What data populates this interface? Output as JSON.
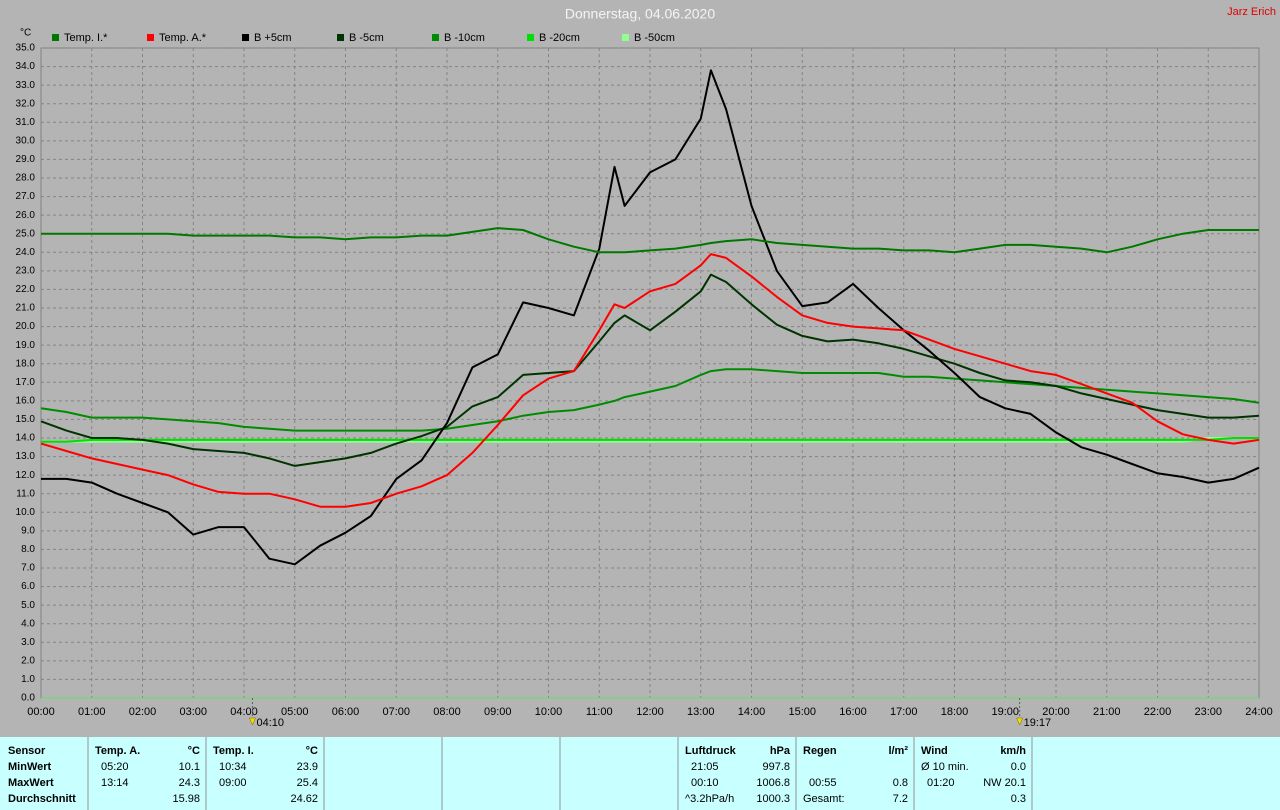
{
  "chart_data": {
    "type": "line",
    "title": "Donnerstag, 04.06.2020",
    "author": "Jarz Erich",
    "y_unit": "°C",
    "x": [
      0,
      0.5,
      1,
      1.5,
      2,
      2.5,
      3,
      3.5,
      4,
      4.5,
      5,
      5.5,
      6,
      6.5,
      7,
      7.5,
      8,
      8.5,
      9,
      9.5,
      10,
      10.5,
      11,
      11.3,
      11.5,
      12,
      12.5,
      13,
      13.2,
      13.5,
      14,
      14.5,
      15,
      15.5,
      16,
      16.5,
      17,
      17.5,
      18,
      18.5,
      19,
      19.5,
      20,
      20.5,
      21,
      21.5,
      22,
      22.5,
      23,
      23.5,
      24
    ],
    "series": [
      {
        "name": "Temp. I.*",
        "color": "#007800",
        "values": [
          25.0,
          25.0,
          25.0,
          25.0,
          25.0,
          25.0,
          24.9,
          24.9,
          24.9,
          24.9,
          24.8,
          24.8,
          24.7,
          24.8,
          24.8,
          24.9,
          24.9,
          25.1,
          25.3,
          25.2,
          24.7,
          24.3,
          24.0,
          24.0,
          24.0,
          24.1,
          24.2,
          24.4,
          24.5,
          24.6,
          24.7,
          24.5,
          24.4,
          24.3,
          24.2,
          24.2,
          24.1,
          24.1,
          24.0,
          24.2,
          24.4,
          24.4,
          24.3,
          24.2,
          24.0,
          24.3,
          24.7,
          25.0,
          25.2,
          25.2,
          25.2
        ]
      },
      {
        "name": "Temp. A.*",
        "color": "#ff0000",
        "values": [
          13.7,
          13.3,
          12.9,
          12.6,
          12.3,
          12.0,
          11.5,
          11.1,
          11.0,
          11.0,
          10.7,
          10.3,
          10.3,
          10.5,
          11.0,
          11.4,
          12.0,
          13.2,
          14.7,
          16.3,
          17.2,
          17.6,
          19.8,
          21.2,
          21.0,
          21.9,
          22.3,
          23.3,
          23.9,
          23.7,
          22.7,
          21.6,
          20.6,
          20.2,
          20.0,
          19.9,
          19.8,
          19.3,
          18.8,
          18.4,
          18.0,
          17.6,
          17.4,
          16.9,
          16.4,
          15.9,
          14.9,
          14.2,
          13.9,
          13.7,
          13.9
        ]
      },
      {
        "name": "B +5cm",
        "color": "#000000",
        "values": [
          11.8,
          11.8,
          11.6,
          11.0,
          10.5,
          10.0,
          8.8,
          9.2,
          9.2,
          7.5,
          7.2,
          8.2,
          8.9,
          9.8,
          11.8,
          12.8,
          14.8,
          17.8,
          18.5,
          21.3,
          21.0,
          20.6,
          24.2,
          28.6,
          26.5,
          28.3,
          29.0,
          31.2,
          33.8,
          31.7,
          26.5,
          23.0,
          21.1,
          21.3,
          22.3,
          21.0,
          19.8,
          18.7,
          17.5,
          16.2,
          15.6,
          15.3,
          14.3,
          13.5,
          13.1,
          12.6,
          12.1,
          11.9,
          11.6,
          11.8,
          12.4
        ]
      },
      {
        "name": "B -5cm",
        "color": "#003300",
        "values": [
          14.9,
          14.4,
          14.0,
          14.0,
          13.9,
          13.7,
          13.4,
          13.3,
          13.2,
          12.9,
          12.5,
          12.7,
          12.9,
          13.2,
          13.7,
          14.1,
          14.6,
          15.7,
          16.2,
          17.4,
          17.5,
          17.6,
          19.2,
          20.2,
          20.6,
          19.8,
          20.8,
          21.9,
          22.8,
          22.4,
          21.2,
          20.1,
          19.5,
          19.2,
          19.3,
          19.1,
          18.8,
          18.4,
          18.0,
          17.5,
          17.1,
          17.0,
          16.8,
          16.4,
          16.1,
          15.8,
          15.5,
          15.3,
          15.1,
          15.1,
          15.2
        ]
      },
      {
        "name": "B -10cm",
        "color": "#008c00",
        "values": [
          15.6,
          15.4,
          15.1,
          15.1,
          15.1,
          15.0,
          14.9,
          14.8,
          14.6,
          14.5,
          14.4,
          14.4,
          14.4,
          14.4,
          14.4,
          14.4,
          14.5,
          14.7,
          14.9,
          15.2,
          15.4,
          15.5,
          15.8,
          16.0,
          16.2,
          16.5,
          16.8,
          17.4,
          17.6,
          17.7,
          17.7,
          17.6,
          17.5,
          17.5,
          17.5,
          17.5,
          17.3,
          17.3,
          17.2,
          17.1,
          17.0,
          16.9,
          16.8,
          16.7,
          16.6,
          16.5,
          16.4,
          16.3,
          16.2,
          16.1,
          15.9
        ]
      },
      {
        "name": "B -20cm",
        "color": "#00e000",
        "values": [
          13.8,
          13.8,
          13.9,
          13.9,
          13.9,
          13.9,
          13.9,
          13.9,
          13.9,
          13.9,
          13.9,
          13.9,
          13.9,
          13.9,
          13.9,
          13.9,
          13.9,
          13.9,
          13.9,
          13.9,
          13.9,
          13.9,
          13.9,
          13.9,
          13.9,
          13.9,
          13.9,
          13.9,
          13.9,
          13.9,
          13.9,
          13.9,
          13.9,
          13.9,
          13.9,
          13.9,
          13.9,
          13.9,
          13.9,
          13.9,
          13.9,
          13.9,
          13.9,
          13.9,
          13.9,
          13.9,
          13.9,
          13.9,
          13.9,
          14.0,
          14.0
        ]
      },
      {
        "name": "B -50cm",
        "color": "#90ff90",
        "values": [
          13.8,
          13.8,
          13.8,
          13.8,
          13.8,
          13.8,
          13.8,
          13.8,
          13.8,
          13.8,
          13.8,
          13.8,
          13.8,
          13.8,
          13.8,
          13.8,
          13.8,
          13.8,
          13.8,
          13.8,
          13.8,
          13.8,
          13.8,
          13.8,
          13.8,
          13.8,
          13.8,
          13.8,
          13.8,
          13.8,
          13.8,
          13.8,
          13.8,
          13.8,
          13.8,
          13.8,
          13.8,
          13.8,
          13.8,
          13.8,
          13.8,
          13.8,
          13.8,
          13.8,
          13.8,
          13.8,
          13.8,
          13.8,
          14.0,
          14.0,
          14.0
        ]
      }
    ],
    "xlim": [
      0,
      24
    ],
    "xticks": [
      {
        "value": 0,
        "label": "00:00"
      },
      {
        "value": 1,
        "label": "01:00"
      },
      {
        "value": 2,
        "label": "02:00"
      },
      {
        "value": 3,
        "label": "03:00"
      },
      {
        "value": 4,
        "label": "04:00"
      },
      {
        "value": 5,
        "label": "05:00"
      },
      {
        "value": 6,
        "label": "06:00"
      },
      {
        "value": 7,
        "label": "07:00"
      },
      {
        "value": 8,
        "label": "08:00"
      },
      {
        "value": 9,
        "label": "09:00"
      },
      {
        "value": 10,
        "label": "10:00"
      },
      {
        "value": 11,
        "label": "11:00"
      },
      {
        "value": 12,
        "label": "12:00"
      },
      {
        "value": 13,
        "label": "13:00"
      },
      {
        "value": 14,
        "label": "14:00"
      },
      {
        "value": 15,
        "label": "15:00"
      },
      {
        "value": 16,
        "label": "16:00"
      },
      {
        "value": 17,
        "label": "17:00"
      },
      {
        "value": 18,
        "label": "18:00"
      },
      {
        "value": 19,
        "label": "19:00"
      },
      {
        "value": 20,
        "label": "20:00"
      },
      {
        "value": 21,
        "label": "21:00"
      },
      {
        "value": 22,
        "label": "22:00"
      },
      {
        "value": 23,
        "label": "23:00"
      },
      {
        "value": 24,
        "label": "24:00"
      }
    ],
    "ylim": [
      0,
      35
    ],
    "yticks": [
      {
        "value": 0,
        "label": "0.0"
      },
      {
        "value": 1,
        "label": "1.0"
      },
      {
        "value": 2,
        "label": "2.0"
      },
      {
        "value": 3,
        "label": "3.0"
      },
      {
        "value": 4,
        "label": "4.0"
      },
      {
        "value": 5,
        "label": "5.0"
      },
      {
        "value": 6,
        "label": "6.0"
      },
      {
        "value": 7,
        "label": "7.0"
      },
      {
        "value": 8,
        "label": "8.0"
      },
      {
        "value": 9,
        "label": "9.0"
      },
      {
        "value": 10,
        "label": "10.0"
      },
      {
        "value": 11,
        "label": "11.0"
      },
      {
        "value": 12,
        "label": "12.0"
      },
      {
        "value": 13,
        "label": "13.0"
      },
      {
        "value": 14,
        "label": "14.0"
      },
      {
        "value": 15,
        "label": "15.0"
      },
      {
        "value": 16,
        "label": "16.0"
      },
      {
        "value": 17,
        "label": "17.0"
      },
      {
        "value": 18,
        "label": "18.0"
      },
      {
        "value": 19,
        "label": "19.0"
      },
      {
        "value": 20,
        "label": "20.0"
      },
      {
        "value": 21,
        "label": "21.0"
      },
      {
        "value": 22,
        "label": "22.0"
      },
      {
        "value": 23,
        "label": "23.0"
      },
      {
        "value": 24,
        "label": "24.0"
      },
      {
        "value": 25,
        "label": "25.0"
      },
      {
        "value": 26,
        "label": "26.0"
      },
      {
        "value": 27,
        "label": "27.0"
      },
      {
        "value": 28,
        "label": "28.0"
      },
      {
        "value": 29,
        "label": "29.0"
      },
      {
        "value": 30,
        "label": "30.0"
      },
      {
        "value": 31,
        "label": "31.0"
      },
      {
        "value": 32,
        "label": "32.0"
      },
      {
        "value": 33,
        "label": "33.0"
      },
      {
        "value": 34,
        "label": "34.0"
      },
      {
        "value": 35,
        "label": "35.0"
      }
    ],
    "grid": true,
    "annotations": [
      {
        "x": 4.1667,
        "label": "04:10"
      },
      {
        "x": 19.2833,
        "label": "19:17"
      }
    ]
  },
  "stats": {
    "row_labels": [
      "Sensor",
      "MinWert",
      "MaxWert",
      "Durchschnitt"
    ],
    "groups": [
      {
        "title": "Temp. A.",
        "unit": "°C",
        "rows": [
          {
            "time": "05:20",
            "value": "10.1"
          },
          {
            "time": "13:14",
            "value": "24.3"
          },
          {
            "value": "15.98"
          }
        ]
      },
      {
        "title": "Temp. I.",
        "unit": "°C",
        "rows": [
          {
            "time": "10:34",
            "value": "23.9"
          },
          {
            "time": "09:00",
            "value": "25.4"
          },
          {
            "value": "24.62"
          }
        ]
      },
      {
        "title": "Luftdruck",
        "unit": "hPa",
        "rows": [
          {
            "time": "21:05",
            "value": "997.8"
          },
          {
            "time": "00:10",
            "value": "1006.8"
          },
          {
            "time": "^3.2hPa/h",
            "value": "1000.3"
          }
        ]
      },
      {
        "title": "Regen",
        "unit": "l/m²",
        "rows": [
          {},
          {
            "time": "00:55",
            "value": "0.8"
          },
          {
            "time": "Gesamt:",
            "value": "7.2"
          }
        ]
      },
      {
        "title": "Wind",
        "unit": "km/h",
        "rows": [
          {
            "time": "Ø 10 min.",
            "value": "0.0"
          },
          {
            "time": "01:20",
            "value": "NW 20.1"
          },
          {
            "value": "0.3"
          }
        ]
      }
    ]
  }
}
